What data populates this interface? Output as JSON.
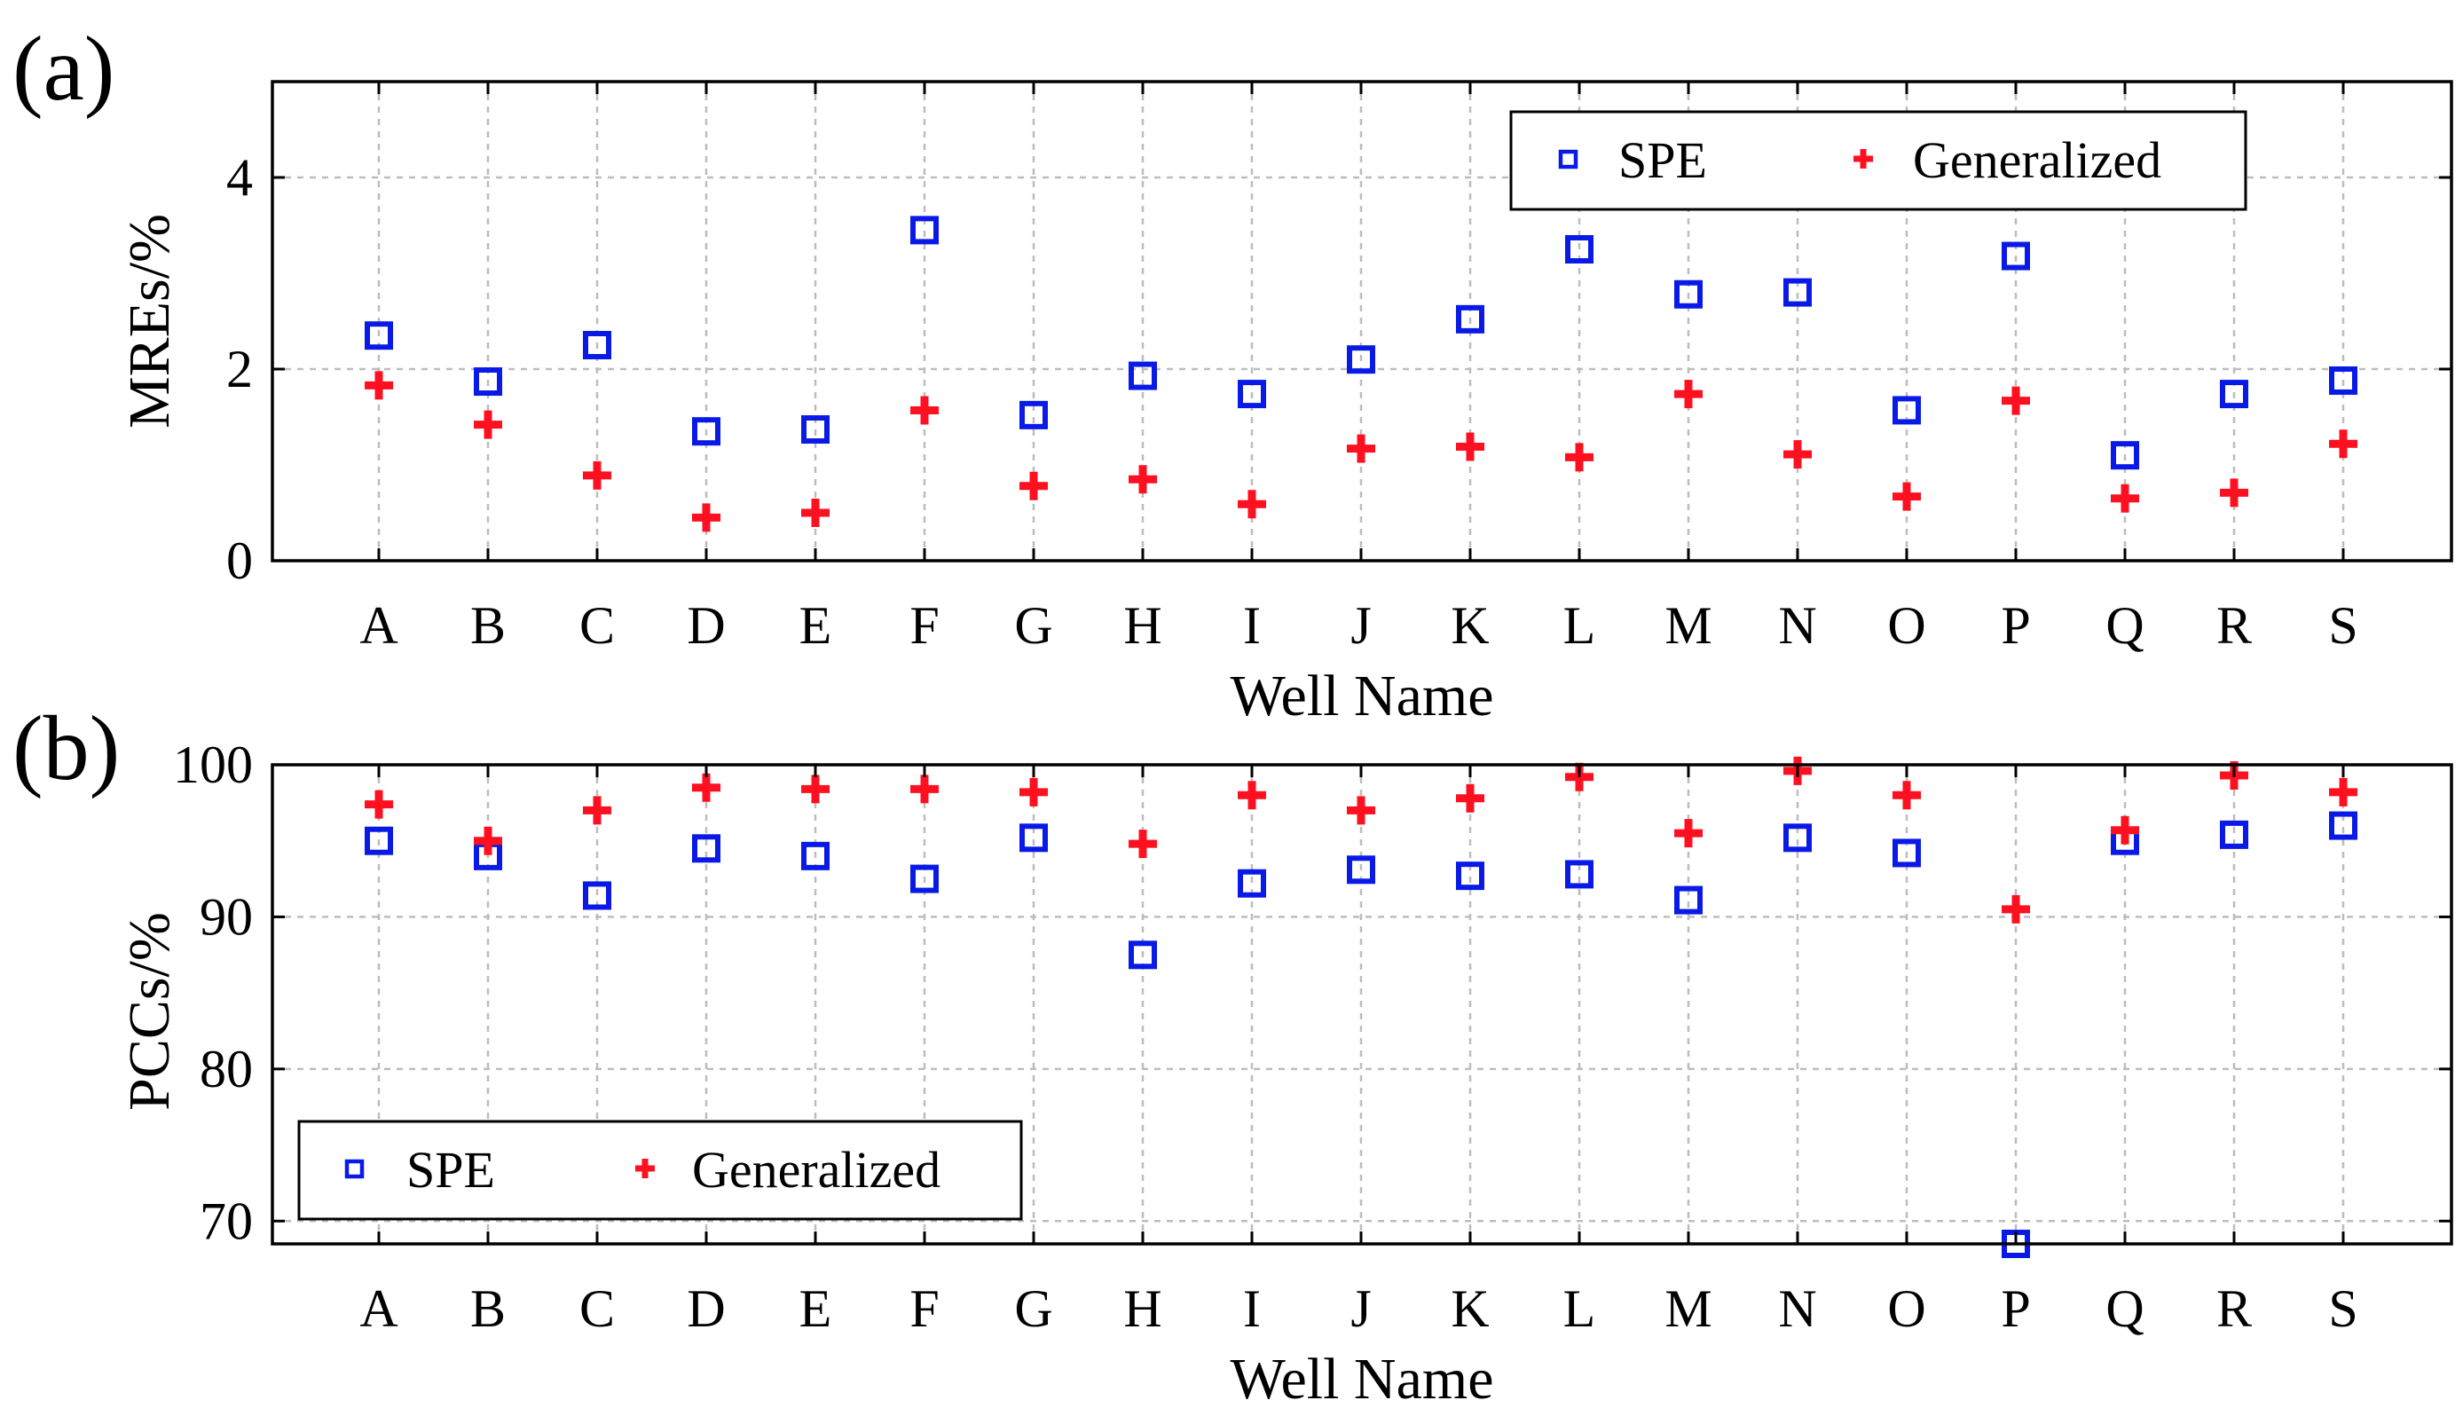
{
  "chart_data": [
    {
      "type": "scatter",
      "panel_label": "(a)",
      "xlabel": "Well Name",
      "ylabel": "MREs/%",
      "categories": [
        "A",
        "B",
        "C",
        "D",
        "E",
        "F",
        "G",
        "H",
        "I",
        "J",
        "K",
        "L",
        "M",
        "N",
        "O",
        "P",
        "Q",
        "R",
        "S"
      ],
      "ylim": [
        0,
        5
      ],
      "yticks": [
        0,
        2,
        4
      ],
      "grid": true,
      "legend": {
        "placement": "top-right"
      },
      "series": [
        {
          "name": "SPE",
          "marker": "square",
          "color": "#0a1ae6",
          "values": [
            2.35,
            1.87,
            2.25,
            1.35,
            1.37,
            3.45,
            1.52,
            1.93,
            1.74,
            2.1,
            2.52,
            3.25,
            2.78,
            2.8,
            1.57,
            3.18,
            1.1,
            1.74,
            1.88
          ]
        },
        {
          "name": "Generalized",
          "marker": "plus",
          "color": "#ff1020",
          "values": [
            1.83,
            1.42,
            0.89,
            0.45,
            0.5,
            1.57,
            0.78,
            0.85,
            0.59,
            1.17,
            1.19,
            1.08,
            1.74,
            1.11,
            0.67,
            1.67,
            0.65,
            0.71,
            1.22
          ]
        }
      ]
    },
    {
      "type": "scatter",
      "panel_label": "(b)",
      "xlabel": "Well Name",
      "ylabel": "PCCs/%",
      "categories": [
        "A",
        "B",
        "C",
        "D",
        "E",
        "F",
        "G",
        "H",
        "I",
        "J",
        "K",
        "L",
        "M",
        "N",
        "O",
        "P",
        "Q",
        "R",
        "S"
      ],
      "ylim": [
        68.5,
        100
      ],
      "yticks": [
        70,
        80,
        90,
        100
      ],
      "grid": true,
      "legend": {
        "placement": "bottom-left"
      },
      "series": [
        {
          "name": "SPE",
          "marker": "square",
          "color": "#0a1ae6",
          "values": [
            95.0,
            94.0,
            91.4,
            94.5,
            94.0,
            92.5,
            95.2,
            87.5,
            92.2,
            93.1,
            92.7,
            92.8,
            91.1,
            95.2,
            94.2,
            68.5,
            95.0,
            95.4,
            96.0
          ]
        },
        {
          "name": "Generalized",
          "marker": "plus",
          "color": "#ff1020",
          "values": [
            97.4,
            95.0,
            97.0,
            98.5,
            98.4,
            98.4,
            98.2,
            94.8,
            98.0,
            97.0,
            97.8,
            99.2,
            95.5,
            99.6,
            98.0,
            90.5,
            95.7,
            99.3,
            98.2
          ]
        }
      ]
    }
  ]
}
